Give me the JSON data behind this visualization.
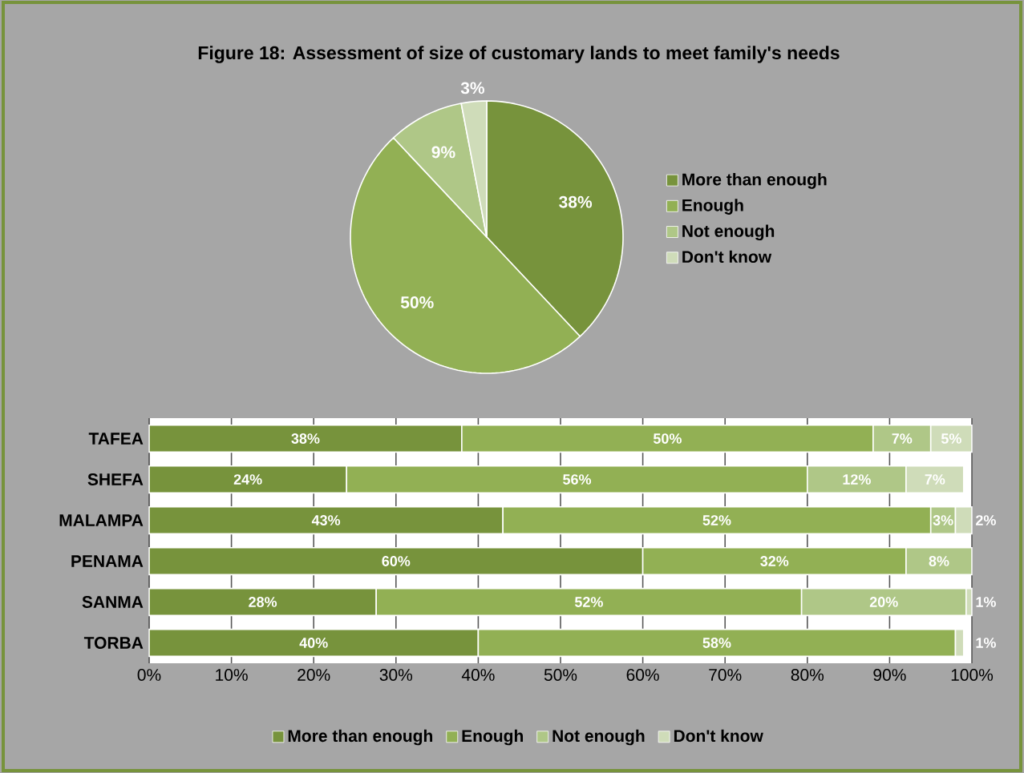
{
  "chart_data": [
    {
      "type": "pie",
      "title": "Figure 18: Assessment of size of customary lands to meet family's needs",
      "categories": [
        "More than enough",
        "Enough",
        "Not enough",
        "Don't know"
      ],
      "values": [
        38,
        50,
        9,
        3
      ],
      "colors": [
        "#77933c",
        "#92b054",
        "#afc787",
        "#cfdcb9"
      ],
      "value_labels": [
        "38%",
        "50%",
        "9%",
        "3%"
      ],
      "legend": "right"
    },
    {
      "type": "bar",
      "orientation": "horizontal",
      "stacked": true,
      "categories": [
        "TAFEA",
        "SHEFA",
        "MALAMPA",
        "PENAMA",
        "SANMA",
        "TORBA"
      ],
      "series": [
        {
          "name": "More than enough",
          "color": "#77933c",
          "values": [
            38,
            24,
            43,
            60,
            27.6,
            40
          ],
          "value_labels": [
            "38%",
            "24%",
            "43%",
            "60%",
            "28%",
            "40%"
          ]
        },
        {
          "name": "Enough",
          "color": "#92b054",
          "values": [
            50,
            56,
            52,
            32,
            51.7,
            58
          ],
          "value_labels": [
            "50%",
            "56%",
            "52%",
            "32%",
            "52%",
            "58%"
          ]
        },
        {
          "name": "Not enough",
          "color": "#afc787",
          "values": [
            7,
            12,
            3,
            8,
            20,
            null
          ],
          "value_labels": [
            "7%",
            "12%",
            "3%",
            "8%",
            "20%",
            null
          ]
        },
        {
          "name": "Don't know",
          "color": "#cfdcb9",
          "values": [
            5,
            7,
            2,
            null,
            0.7,
            1
          ],
          "value_labels": [
            "5%",
            "7%",
            "2%",
            null,
            "1%",
            "1%"
          ]
        }
      ],
      "xlim": [
        0,
        100
      ],
      "xticks": [
        {
          "value": 0,
          "label": "0%"
        },
        {
          "value": 10,
          "label": "10%"
        },
        {
          "value": 20,
          "label": "20%"
        },
        {
          "value": 30,
          "label": "30%"
        },
        {
          "value": 40,
          "label": "40%"
        },
        {
          "value": 50,
          "label": "50%"
        },
        {
          "value": 60,
          "label": "60%"
        },
        {
          "value": 70,
          "label": "70%"
        },
        {
          "value": 80,
          "label": "80%"
        },
        {
          "value": 90,
          "label": "90%"
        },
        {
          "value": 100,
          "label": "100%"
        }
      ],
      "grid": "x",
      "legend": "bottom"
    }
  ]
}
